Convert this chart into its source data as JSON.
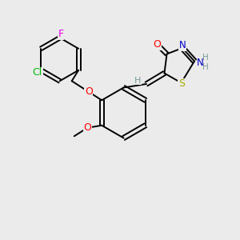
{
  "bg_color": "#ebebeb",
  "figsize": [
    3.0,
    3.0
  ],
  "dpi": 100,
  "bond_color": "#000000",
  "bond_lw": 1.4,
  "colors": {
    "O": "#ff0000",
    "N": "#0000cc",
    "S": "#aaaa00",
    "F": "#ee00ee",
    "Cl": "#00bb00",
    "C": "#000000",
    "H": "#7a9a9a"
  },
  "font_size": 8.5
}
